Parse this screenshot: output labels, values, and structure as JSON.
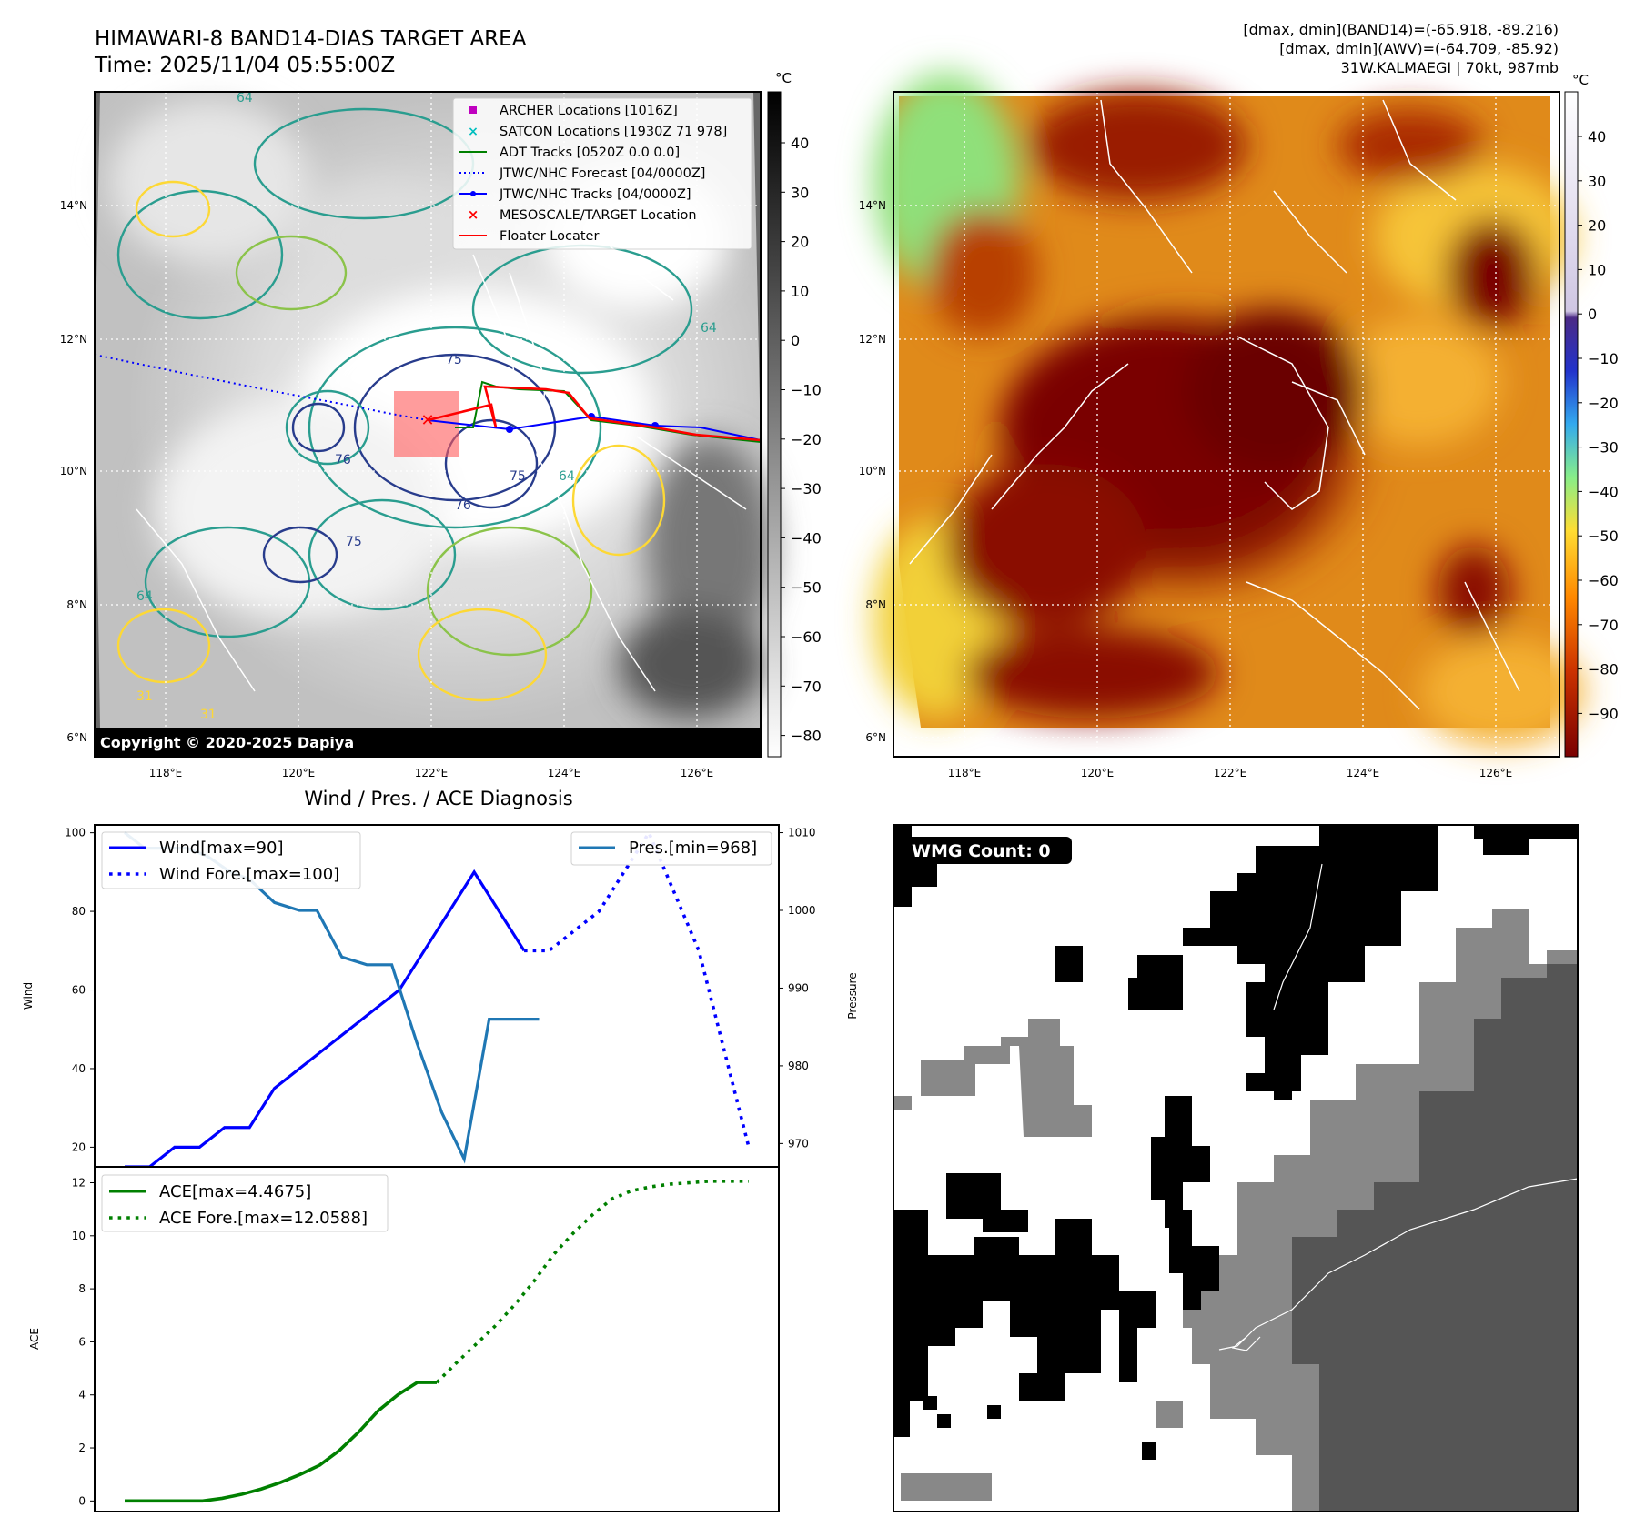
{
  "header": {
    "title_line1": "HIMAWARI-8 BAND14-DIAS TARGET AREA",
    "title_line2": "Time: 2025/11/04 05:55:00Z",
    "info_line1": "[dmax, dmin](BAND14)=(-65.918, -89.216)",
    "info_line2": "[dmax, dmin](AWV)=(-64.709, -85.92)",
    "info_line3": "31W.KALMAEGI | 70kt, 987mb"
  },
  "maps": {
    "lat_labels": [
      "14°N",
      "12°N",
      "10°N",
      "8°N",
      "6°N"
    ],
    "lon_labels": [
      "118°E",
      "120°E",
      "122°E",
      "124°E",
      "126°E"
    ],
    "copyright": "Copyright © 2020-2025 Dapiya",
    "contour_labels": [
      "64",
      "64",
      "64",
      "64",
      "75",
      "76",
      "75",
      "75",
      "76",
      "31",
      "31"
    ]
  },
  "colorbar_gray": {
    "unit": "°C",
    "ticks": [
      "40",
      "30",
      "20",
      "10",
      "0",
      "−10",
      "−20",
      "−30",
      "−40",
      "−50",
      "−60",
      "−70",
      "−80"
    ]
  },
  "colorbar_color": {
    "unit": "°C",
    "ticks": [
      "40",
      "30",
      "20",
      "10",
      "0",
      "−10",
      "−20",
      "−30",
      "−40",
      "−50",
      "−60",
      "−70",
      "−80",
      "−90"
    ]
  },
  "legend_map": {
    "items": [
      "ARCHER Locations [1016Z]",
      "SATCON Locations [1930Z 71 978]",
      "ADT Tracks [0520Z 0.0 0.0]",
      "JTWC/NHC Forecast [04/0000Z]",
      "JTWC/NHC Tracks [04/0000Z]",
      "MESOSCALE/TARGET Location",
      "Floater Locater"
    ]
  },
  "colors": {
    "wind": "#0000ff",
    "pres": "#1f77b4",
    "ace": "#008000",
    "track_red": "#ff0000",
    "track_green": "#008000",
    "track_blue": "#0000ff"
  },
  "wmg": {
    "label": "WMG Count: 0"
  },
  "chart_data": [
    {
      "type": "line",
      "title": "Wind / Pres. / ACE Diagnosis",
      "ylabel": "Wind",
      "ylim": [
        15,
        102
      ],
      "yticks": [
        "100",
        "80",
        "60",
        "40",
        "20"
      ],
      "series": [
        {
          "name": "Wind[max=90]",
          "x": [
            0,
            1,
            2,
            3,
            4,
            5,
            6,
            7,
            8,
            9,
            10,
            11,
            12,
            13,
            14,
            15,
            16
          ],
          "values": [
            15,
            15,
            20,
            20,
            25,
            25,
            35,
            40,
            45,
            50,
            55,
            60,
            70,
            80,
            90,
            80,
            70
          ]
        },
        {
          "name": "Wind Fore.[max=100]",
          "x": [
            16,
            17,
            18,
            19,
            20,
            21,
            22,
            23,
            24,
            25
          ],
          "values": [
            70,
            70,
            75,
            80,
            90,
            100,
            85,
            70,
            45,
            20
          ]
        }
      ]
    },
    {
      "type": "line",
      "ylabel": "Pressure",
      "ylim": [
        967,
        1011
      ],
      "yticks": [
        "1010",
        "1000",
        "990",
        "980",
        "970"
      ],
      "series": [
        {
          "name": "Pres.[min=968]",
          "x": [
            0,
            0.8,
            1.5,
            2.5,
            3.3,
            4.2,
            5,
            6,
            7,
            7.7,
            8.7,
            9.7,
            10.7,
            11.7,
            12.7,
            13.6,
            14.6,
            15.6,
            16.6
          ],
          "values": [
            1010,
            1008,
            1008,
            1008,
            1007,
            1005,
            1004,
            1001,
            1000,
            1000,
            994,
            993,
            993,
            983,
            974,
            968,
            986,
            986,
            986
          ]
        }
      ]
    },
    {
      "type": "line",
      "ylabel": "ACE",
      "ylim": [
        -0.4,
        12.6
      ],
      "yticks": [
        "12",
        "10",
        "8",
        "6",
        "4",
        "2",
        "0"
      ],
      "series": [
        {
          "name": "ACE[max=4.4675]",
          "x": [
            0,
            1,
            2,
            3,
            4,
            5,
            6,
            7,
            8,
            9,
            10,
            11,
            12,
            13,
            14,
            15,
            16
          ],
          "values": [
            0,
            0,
            0,
            0,
            0,
            0.1,
            0.25,
            0.45,
            0.7,
            1.0,
            1.35,
            1.9,
            2.6,
            3.4,
            4.0,
            4.4675,
            4.4675
          ]
        },
        {
          "name": "ACE Fore.[max=12.0588]",
          "x": [
            16,
            17,
            18,
            19,
            20,
            21,
            22,
            23,
            24,
            25,
            26,
            27,
            28,
            29,
            30,
            31,
            32
          ],
          "values": [
            4.4675,
            5.2,
            5.9,
            6.6,
            7.4,
            8.3,
            9.3,
            10.1,
            10.8,
            11.4,
            11.7,
            11.85,
            11.95,
            12.0,
            12.0588,
            12.0588,
            12.0588
          ]
        }
      ]
    }
  ]
}
